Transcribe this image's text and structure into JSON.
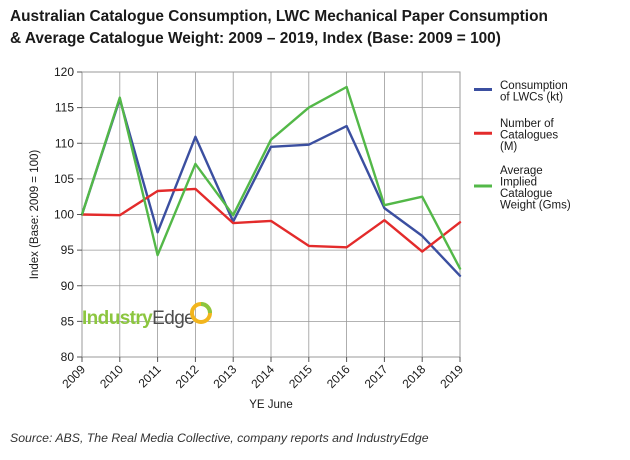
{
  "title_lines": [
    "Australian Catalogue Consumption, LWC Mechanical Paper Consumption",
    "& Average Catalogue Weight: 2009 – 2019, Index (Base: 2009 = 100)"
  ],
  "source": "Source: ABS, The Real Media Collective, company reports and IndustryEdge",
  "logo": {
    "part1": "Industry",
    "part2": "Edge"
  },
  "chart_data": {
    "type": "line",
    "title": "Australian Catalogue Consumption, LWC Mechanical Paper Consumption & Average Catalogue Weight: 2009 – 2019, Index (Base: 2009 = 100)",
    "xlabel": "YE June",
    "ylabel": "Index (Base: 2009 = 100)",
    "categories": [
      "2009",
      "2010",
      "2011",
      "2012",
      "2013",
      "2014",
      "2015",
      "2016",
      "2017",
      "2018",
      "2019"
    ],
    "ylim": [
      80,
      120
    ],
    "yticks": [
      80,
      85,
      90,
      95,
      100,
      105,
      110,
      115,
      120
    ],
    "grid": true,
    "legend_position": "right",
    "series": [
      {
        "name": "Consumption of LWCs (kt)",
        "legend_lines": [
          "Consumption",
          "of LWCs (kt)"
        ],
        "color": "#3b4fa0",
        "values": [
          100,
          116.2,
          97.5,
          110.9,
          99.0,
          109.5,
          109.8,
          112.4,
          100.9,
          97.0,
          91.4
        ]
      },
      {
        "name": "Number of Catalogues (M)",
        "legend_lines": [
          "Number of",
          "Catalogues",
          "(M)"
        ],
        "color": "#e32b2b",
        "values": [
          100,
          99.9,
          103.3,
          103.6,
          98.8,
          99.1,
          95.6,
          95.4,
          99.2,
          94.8,
          98.9
        ]
      },
      {
        "name": "Average Implied Catalogue Weight (Gms)",
        "legend_lines": [
          "Average",
          "Implied",
          "Catalogue",
          "Weight (Gms)"
        ],
        "color": "#53b848",
        "values": [
          100,
          116.4,
          94.3,
          107.1,
          99.9,
          110.5,
          115.0,
          117.9,
          101.3,
          102.5,
          92.4
        ]
      }
    ]
  }
}
